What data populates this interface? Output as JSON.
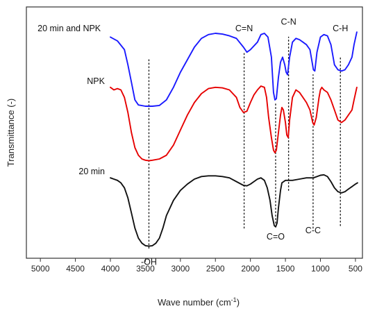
{
  "chart_data": {
    "type": "line",
    "xlabel": "Wave number (cm",
    "xlabel_sup": "-1",
    "xlabel_tail": ")",
    "ylabel": "Transmittance (-)",
    "xlim": [
      5200,
      400
    ],
    "x_ticks": [
      5000,
      4500,
      4000,
      3500,
      3000,
      2500,
      2000,
      1500,
      1000,
      500
    ],
    "x_tick_labels": [
      "5000",
      "4500",
      "4000",
      "3500",
      "3000",
      "2500",
      "2000",
      "1500",
      "1000",
      "500"
    ],
    "ylim": [
      0,
      100
    ],
    "grid": false,
    "series": [
      {
        "name": "20 min and NPK",
        "color": "#1a1aff",
        "points": [
          [
            4000,
            88
          ],
          [
            3900,
            86.5
          ],
          [
            3800,
            83
          ],
          [
            3750,
            77
          ],
          [
            3700,
            70
          ],
          [
            3650,
            63
          ],
          [
            3600,
            61
          ],
          [
            3500,
            60.5
          ],
          [
            3400,
            60.5
          ],
          [
            3300,
            60.8
          ],
          [
            3200,
            63
          ],
          [
            3100,
            68
          ],
          [
            3000,
            74
          ],
          [
            2900,
            79
          ],
          [
            2800,
            84
          ],
          [
            2700,
            87.5
          ],
          [
            2600,
            89
          ],
          [
            2500,
            89.5
          ],
          [
            2400,
            89.2
          ],
          [
            2300,
            88.5
          ],
          [
            2200,
            87.5
          ],
          [
            2100,
            84
          ],
          [
            2050,
            82
          ],
          [
            2000,
            83
          ],
          [
            1900,
            86
          ],
          [
            1850,
            89
          ],
          [
            1800,
            89.5
          ],
          [
            1750,
            88
          ],
          [
            1700,
            80
          ],
          [
            1670,
            66
          ],
          [
            1650,
            63
          ],
          [
            1630,
            63.5
          ],
          [
            1600,
            72
          ],
          [
            1570,
            78
          ],
          [
            1540,
            80
          ],
          [
            1510,
            77
          ],
          [
            1490,
            74
          ],
          [
            1470,
            73
          ],
          [
            1440,
            80
          ],
          [
            1400,
            86
          ],
          [
            1350,
            87.5
          ],
          [
            1300,
            87
          ],
          [
            1250,
            86
          ],
          [
            1200,
            85
          ],
          [
            1150,
            83
          ],
          [
            1100,
            75
          ],
          [
            1080,
            74.5
          ],
          [
            1050,
            82
          ],
          [
            1000,
            88
          ],
          [
            950,
            89
          ],
          [
            900,
            88.5
          ],
          [
            850,
            85
          ],
          [
            800,
            77
          ],
          [
            750,
            75
          ],
          [
            700,
            74.5
          ],
          [
            650,
            75
          ],
          [
            600,
            77
          ],
          [
            550,
            80
          ],
          [
            520,
            85
          ],
          [
            480,
            90
          ]
        ]
      },
      {
        "name": "NPK",
        "color": "#e60000",
        "points": [
          [
            4000,
            68
          ],
          [
            3950,
            67
          ],
          [
            3900,
            67.5
          ],
          [
            3850,
            67
          ],
          [
            3800,
            64
          ],
          [
            3750,
            58
          ],
          [
            3700,
            50
          ],
          [
            3650,
            44
          ],
          [
            3600,
            41
          ],
          [
            3550,
            39.5
          ],
          [
            3500,
            39
          ],
          [
            3450,
            38.8
          ],
          [
            3400,
            39
          ],
          [
            3300,
            39.5
          ],
          [
            3200,
            41
          ],
          [
            3100,
            45
          ],
          [
            3000,
            51
          ],
          [
            2900,
            57
          ],
          [
            2800,
            62
          ],
          [
            2700,
            65.5
          ],
          [
            2600,
            67.5
          ],
          [
            2500,
            68
          ],
          [
            2400,
            67.8
          ],
          [
            2300,
            67
          ],
          [
            2200,
            64
          ],
          [
            2150,
            60
          ],
          [
            2100,
            58
          ],
          [
            2050,
            58.5
          ],
          [
            2000,
            62
          ],
          [
            1950,
            65
          ],
          [
            1900,
            67
          ],
          [
            1850,
            68.5
          ],
          [
            1800,
            68
          ],
          [
            1770,
            64
          ],
          [
            1740,
            56
          ],
          [
            1700,
            48
          ],
          [
            1670,
            43
          ],
          [
            1650,
            42
          ],
          [
            1630,
            43
          ],
          [
            1600,
            50
          ],
          [
            1570,
            57
          ],
          [
            1550,
            60
          ],
          [
            1530,
            59
          ],
          [
            1500,
            54
          ],
          [
            1480,
            49
          ],
          [
            1460,
            48
          ],
          [
            1440,
            55
          ],
          [
            1400,
            64
          ],
          [
            1350,
            67
          ],
          [
            1300,
            66
          ],
          [
            1250,
            64
          ],
          [
            1200,
            62
          ],
          [
            1150,
            59
          ],
          [
            1110,
            54
          ],
          [
            1090,
            53
          ],
          [
            1060,
            56
          ],
          [
            1020,
            64
          ],
          [
            1000,
            67
          ],
          [
            980,
            68
          ],
          [
            950,
            67
          ],
          [
            900,
            66
          ],
          [
            850,
            63
          ],
          [
            800,
            59
          ],
          [
            750,
            55
          ],
          [
            700,
            54
          ],
          [
            650,
            55
          ],
          [
            600,
            57
          ],
          [
            550,
            59
          ],
          [
            520,
            63
          ],
          [
            480,
            68
          ]
        ]
      },
      {
        "name": "20 min",
        "color": "#111111",
        "points": [
          [
            4000,
            32
          ],
          [
            3950,
            31.5
          ],
          [
            3900,
            31
          ],
          [
            3850,
            30
          ],
          [
            3800,
            28
          ],
          [
            3750,
            24
          ],
          [
            3700,
            18
          ],
          [
            3650,
            12
          ],
          [
            3600,
            8
          ],
          [
            3550,
            6
          ],
          [
            3500,
            5
          ],
          [
            3450,
            4.8
          ],
          [
            3400,
            5
          ],
          [
            3350,
            6
          ],
          [
            3300,
            8
          ],
          [
            3250,
            12
          ],
          [
            3200,
            17
          ],
          [
            3100,
            23
          ],
          [
            3000,
            27
          ],
          [
            2900,
            29.5
          ],
          [
            2800,
            31.5
          ],
          [
            2700,
            32.5
          ],
          [
            2600,
            32.8
          ],
          [
            2500,
            32.8
          ],
          [
            2400,
            32.5
          ],
          [
            2300,
            32
          ],
          [
            2200,
            30.5
          ],
          [
            2100,
            29
          ],
          [
            2050,
            28.8
          ],
          [
            2000,
            29.5
          ],
          [
            1950,
            30.5
          ],
          [
            1900,
            31.5
          ],
          [
            1850,
            32
          ],
          [
            1800,
            31
          ],
          [
            1760,
            28
          ],
          [
            1720,
            23
          ],
          [
            1690,
            17
          ],
          [
            1660,
            13
          ],
          [
            1640,
            12.5
          ],
          [
            1620,
            14
          ],
          [
            1600,
            20
          ],
          [
            1570,
            27
          ],
          [
            1550,
            30
          ],
          [
            1500,
            31
          ],
          [
            1450,
            31
          ],
          [
            1400,
            31
          ],
          [
            1300,
            31.5
          ],
          [
            1200,
            32
          ],
          [
            1100,
            32
          ],
          [
            1000,
            33
          ],
          [
            950,
            33.2
          ],
          [
            900,
            32.5
          ],
          [
            850,
            30.5
          ],
          [
            800,
            28
          ],
          [
            750,
            26.5
          ],
          [
            700,
            26
          ],
          [
            650,
            26.5
          ],
          [
            600,
            27.5
          ],
          [
            550,
            28.5
          ],
          [
            500,
            29.5
          ],
          [
            470,
            30
          ]
        ]
      }
    ],
    "series_labels": [
      {
        "text": "20 min and NPK",
        "x": 5040,
        "y": 91.5,
        "anchor": "start"
      },
      {
        "text": "NPK",
        "x": 4080,
        "y": 70.5,
        "anchor": "end"
      },
      {
        "text": "20 min",
        "x": 4080,
        "y": 34.5,
        "anchor": "end"
      }
    ],
    "annotations": [
      {
        "label": "-OH",
        "x": 3450,
        "line_from": 4,
        "line_to": 79,
        "label_y": -1.5
      },
      {
        "label": "C=N",
        "x": 2090,
        "line_from": 12,
        "line_to": 82,
        "label_y": 91.5
      },
      {
        "label": "C=O",
        "x": 1640,
        "line_from": 14,
        "line_to": 62,
        "label_y": 8.5
      },
      {
        "label": "C-N",
        "x": 1455,
        "line_from": 27,
        "line_to": 88,
        "label_y": 94
      },
      {
        "label": "C-C",
        "x": 1105,
        "line_from": 12,
        "line_to": 73,
        "label_y": 11
      },
      {
        "label": "C-H",
        "x": 715,
        "line_from": 13,
        "line_to": 80,
        "label_y": 91.5
      }
    ]
  }
}
